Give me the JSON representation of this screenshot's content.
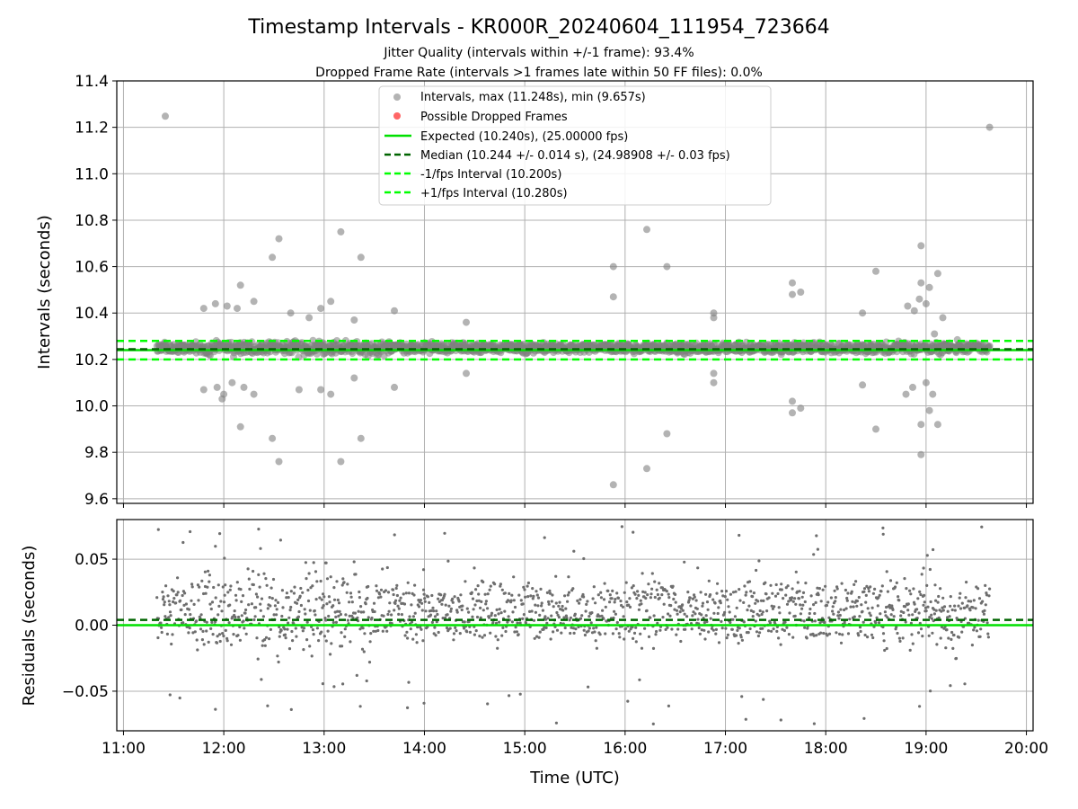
{
  "figure": {
    "title": "Timestamp Intervals - KR000R_20240604_111954_723664",
    "subtitle_1": "Jitter Quality (intervals within +/-1 frame): 93.4%",
    "subtitle_2": "Dropped Frame Rate (intervals >1 frames late within 50 FF files): 0.0%"
  },
  "chart_data": [
    {
      "type": "scatter",
      "ylabel": "Intervals (seconds)",
      "xlim": [
        "10:56",
        "20:04"
      ],
      "ylim": [
        9.58,
        11.4
      ],
      "yticks": [
        "9.6",
        "9.8",
        "10.0",
        "10.2",
        "10.4",
        "10.6",
        "10.8",
        "11.0",
        "11.2",
        "11.4"
      ],
      "grid": true,
      "legend_position": "top-center",
      "legend": [
        {
          "label": "Intervals, max (11.248s), min (9.657s)",
          "marker": "circle",
          "color": "#808080"
        },
        {
          "label": "Possible Dropped Frames",
          "marker": "circle",
          "color": "#ff0000"
        },
        {
          "label": "Expected (10.240s), (25.00000 fps)",
          "line": "solid",
          "color": "#00e000"
        },
        {
          "label": "Median (10.244 +/- 0.014 s), (24.98908 +/- 0.03 fps)",
          "line": "dashed",
          "color": "#006400"
        },
        {
          "label": "-1/fps Interval (10.200s)",
          "line": "dashed",
          "color": "#00ff00"
        },
        {
          "label": "+1/fps Interval (10.280s)",
          "line": "dashed",
          "color": "#00ff00"
        }
      ],
      "reference_lines": {
        "expected": 10.24,
        "median": 10.244,
        "minus_1fps": 10.2,
        "plus_1fps": 10.28
      },
      "series_time_range": [
        "11:20",
        "19:38"
      ],
      "outliers": [
        {
          "x": "11:25",
          "y": 11.248
        },
        {
          "x": "19:38",
          "y": 11.2
        },
        {
          "x": "12:33",
          "y": 10.72
        },
        {
          "x": "12:29",
          "y": 10.64
        },
        {
          "x": "13:10",
          "y": 10.75
        },
        {
          "x": "13:22",
          "y": 10.64
        },
        {
          "x": "16:13",
          "y": 10.76
        },
        {
          "x": "15:53",
          "y": 10.6
        },
        {
          "x": "16:25",
          "y": 10.6
        },
        {
          "x": "15:53",
          "y": 10.47
        },
        {
          "x": "18:57",
          "y": 10.69
        },
        {
          "x": "18:30",
          "y": 10.58
        },
        {
          "x": "19:07",
          "y": 10.57
        },
        {
          "x": "17:40",
          "y": 10.53
        },
        {
          "x": "17:45",
          "y": 10.49
        },
        {
          "x": "17:40",
          "y": 10.48
        },
        {
          "x": "18:57",
          "y": 10.53
        },
        {
          "x": "19:02",
          "y": 10.51
        },
        {
          "x": "12:10",
          "y": 10.52
        },
        {
          "x": "12:18",
          "y": 10.45
        },
        {
          "x": "13:04",
          "y": 10.45
        },
        {
          "x": "12:58",
          "y": 10.42
        },
        {
          "x": "13:42",
          "y": 10.41
        },
        {
          "x": "12:40",
          "y": 10.4
        },
        {
          "x": "12:51",
          "y": 10.38
        },
        {
          "x": "13:18",
          "y": 10.37
        },
        {
          "x": "14:25",
          "y": 10.36
        },
        {
          "x": "16:53",
          "y": 10.4
        },
        {
          "x": "16:53",
          "y": 10.38
        },
        {
          "x": "18:22",
          "y": 10.4
        },
        {
          "x": "11:48",
          "y": 10.42
        },
        {
          "x": "11:55",
          "y": 10.44
        },
        {
          "x": "12:02",
          "y": 10.43
        },
        {
          "x": "12:08",
          "y": 10.42
        },
        {
          "x": "11:48",
          "y": 10.07
        },
        {
          "x": "11:56",
          "y": 10.08
        },
        {
          "x": "12:00",
          "y": 10.05
        },
        {
          "x": "11:59",
          "y": 10.03
        },
        {
          "x": "12:05",
          "y": 10.1
        },
        {
          "x": "12:12",
          "y": 10.08
        },
        {
          "x": "12:18",
          "y": 10.05
        },
        {
          "x": "12:10",
          "y": 9.91
        },
        {
          "x": "12:29",
          "y": 9.86
        },
        {
          "x": "12:33",
          "y": 9.76
        },
        {
          "x": "13:10",
          "y": 9.76
        },
        {
          "x": "13:22",
          "y": 9.86
        },
        {
          "x": "12:45",
          "y": 10.07
        },
        {
          "x": "12:58",
          "y": 10.07
        },
        {
          "x": "13:04",
          "y": 10.05
        },
        {
          "x": "13:18",
          "y": 10.12
        },
        {
          "x": "13:42",
          "y": 10.08
        },
        {
          "x": "14:25",
          "y": 10.14
        },
        {
          "x": "15:53",
          "y": 9.66
        },
        {
          "x": "16:13",
          "y": 9.73
        },
        {
          "x": "16:25",
          "y": 9.88
        },
        {
          "x": "16:53",
          "y": 10.1
        },
        {
          "x": "16:53",
          "y": 10.14
        },
        {
          "x": "17:40",
          "y": 9.97
        },
        {
          "x": "17:40",
          "y": 10.02
        },
        {
          "x": "17:45",
          "y": 9.99
        },
        {
          "x": "18:22",
          "y": 10.09
        },
        {
          "x": "18:30",
          "y": 9.9
        },
        {
          "x": "18:48",
          "y": 10.05
        },
        {
          "x": "18:52",
          "y": 10.08
        },
        {
          "x": "18:57",
          "y": 9.79
        },
        {
          "x": "18:57",
          "y": 9.92
        },
        {
          "x": "19:02",
          "y": 9.98
        },
        {
          "x": "19:07",
          "y": 9.92
        },
        {
          "x": "19:00",
          "y": 10.1
        },
        {
          "x": "19:04",
          "y": 10.05
        },
        {
          "x": "18:49",
          "y": 10.43
        },
        {
          "x": "18:53",
          "y": 10.41
        },
        {
          "x": "18:56",
          "y": 10.46
        },
        {
          "x": "19:00",
          "y": 10.44
        },
        {
          "x": "19:05",
          "y": 10.31
        },
        {
          "x": "19:10",
          "y": 10.38
        }
      ]
    },
    {
      "type": "scatter",
      "xlabel": "Time (UTC)",
      "ylabel": "Residuals (seconds)",
      "xlim": [
        "10:56",
        "20:04"
      ],
      "ylim": [
        -0.08,
        0.08
      ],
      "xticks": [
        "11:00",
        "12:00",
        "13:00",
        "14:00",
        "15:00",
        "16:00",
        "17:00",
        "18:00",
        "19:00",
        "20:00"
      ],
      "yticks": [
        "−0.05",
        "0.00",
        "0.05"
      ],
      "grid": true,
      "reference_lines": {
        "expected": 0.0,
        "median": 0.004
      },
      "series_time_range": [
        "11:20",
        "19:38"
      ]
    }
  ],
  "colors": {
    "points": "#808080",
    "expected": "#00e000",
    "median": "#006400",
    "fps_bounds": "#00ff00",
    "grid": "#b0b0b0"
  }
}
